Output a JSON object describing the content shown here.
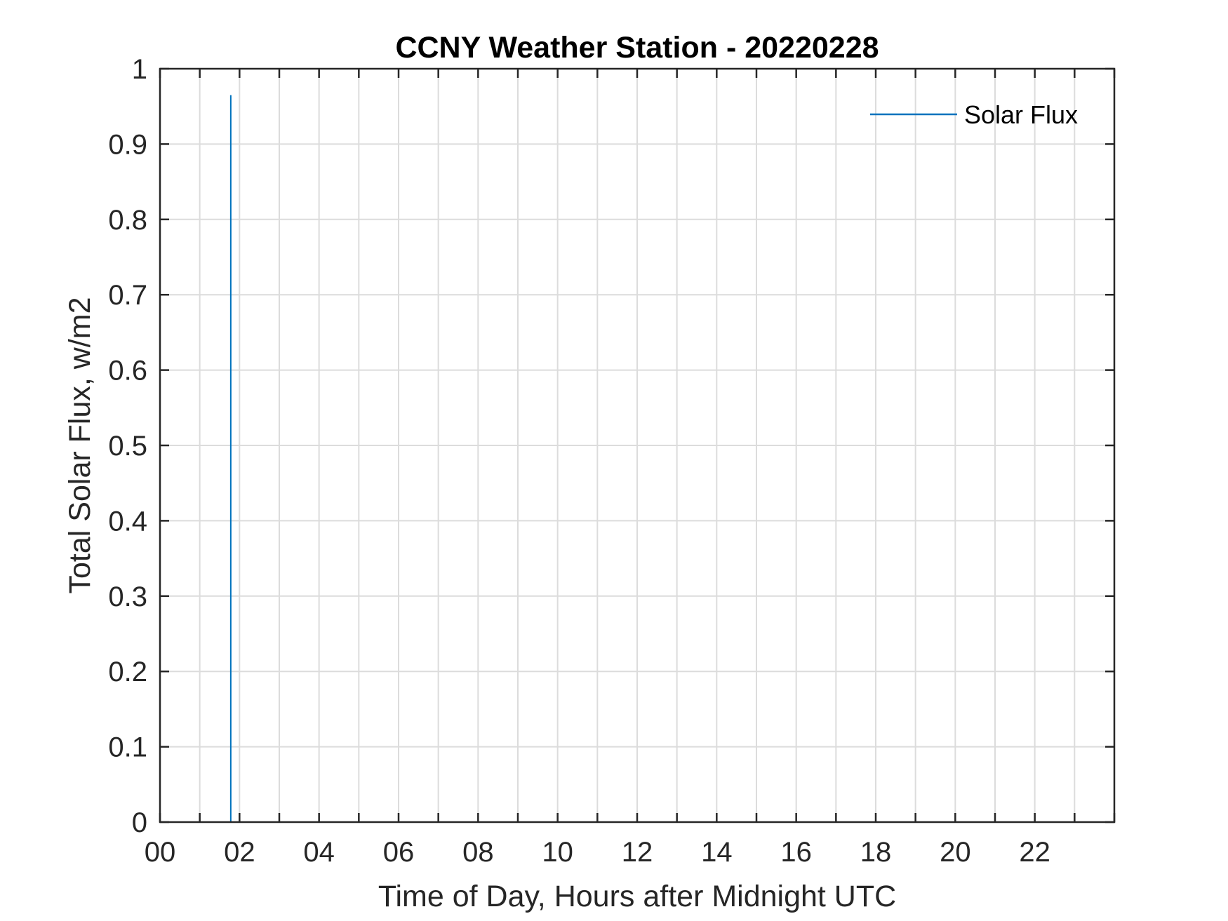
{
  "colors": {
    "series": "#0072bd",
    "axis": "#262626",
    "grid": "#dcdcdc"
  },
  "chart_data": {
    "type": "line",
    "title": "CCNY Weather Station - 20220228",
    "xlabel": "Time of Day, Hours after Midnight UTC",
    "ylabel": "Total Solar Flux, w/m2",
    "xlim": [
      0,
      24
    ],
    "ylim": [
      0,
      1
    ],
    "xticks": [
      0,
      2,
      4,
      6,
      8,
      10,
      12,
      14,
      16,
      18,
      20,
      22
    ],
    "xtick_labels": [
      "00",
      "02",
      "04",
      "06",
      "08",
      "10",
      "12",
      "14",
      "16",
      "18",
      "20",
      "22"
    ],
    "yticks": [
      0,
      0.1,
      0.2,
      0.3,
      0.4,
      0.5,
      0.6,
      0.7,
      0.8,
      0.9,
      1
    ],
    "ytick_labels": [
      "0",
      "0.1",
      "0.2",
      "0.3",
      "0.4",
      "0.5",
      "0.6",
      "0.7",
      "0.8",
      "0.9",
      "1"
    ],
    "grid": true,
    "legend_position": "top-right",
    "series": [
      {
        "name": "Solar Flux",
        "color": "#0072bd",
        "x": [
          1.78,
          1.78
        ],
        "y": [
          0,
          0.965
        ]
      }
    ]
  }
}
